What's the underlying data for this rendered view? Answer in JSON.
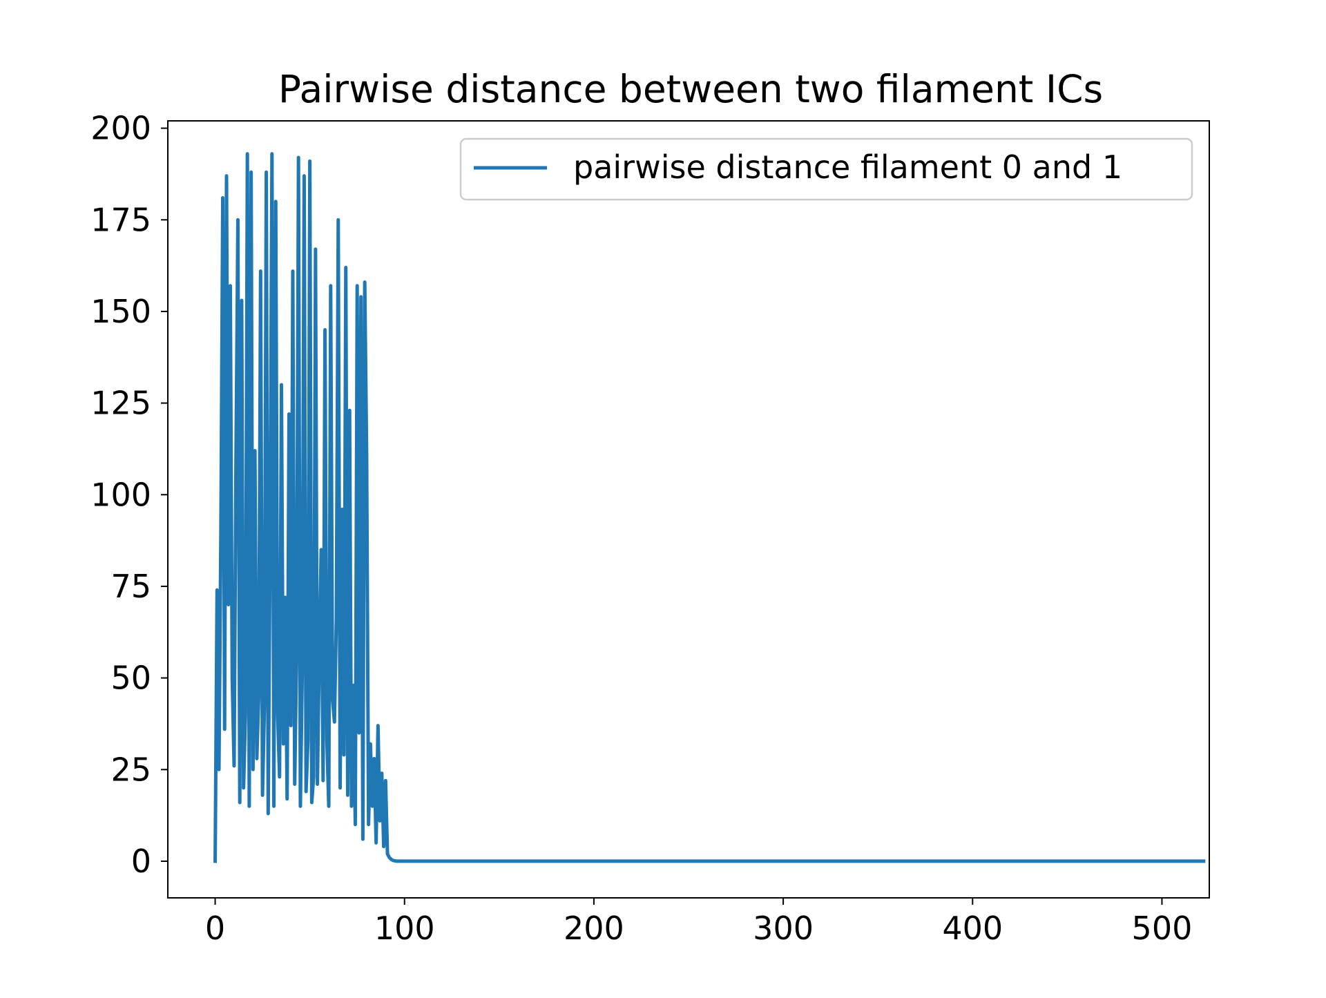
{
  "colors": {
    "series": "#1f77b4",
    "axes": "#000000",
    "background": "#ffffff",
    "legend_border": "#cccccc"
  },
  "chart_data": {
    "type": "line",
    "title": "Pairwise distance between two filament ICs",
    "xlabel": "",
    "ylabel": "",
    "xlim": [
      -25,
      525
    ],
    "ylim": [
      -10,
      202
    ],
    "x_ticks": [
      0,
      100,
      200,
      300,
      400,
      500
    ],
    "x_tick_labels": [
      "0",
      "100",
      "200",
      "300",
      "400",
      "500"
    ],
    "y_ticks": [
      0,
      25,
      50,
      75,
      100,
      125,
      150,
      175,
      200
    ],
    "y_tick_labels": [
      "0",
      "25",
      "50",
      "75",
      "100",
      "125",
      "150",
      "175",
      "200"
    ],
    "grid": false,
    "legend_position": "upper-right",
    "series": [
      {
        "name": "pairwise distance filament 0 and 1",
        "x_start": 0,
        "x_step": 1,
        "values": [
          0,
          74,
          25,
          88,
          181,
          36,
          187,
          70,
          157,
          50,
          26,
          110,
          175,
          16,
          153,
          20,
          40,
          193,
          15,
          188,
          25,
          112,
          28,
          45,
          161,
          18,
          42,
          188,
          13,
          87,
          193,
          15,
          180,
          40,
          23,
          130,
          32,
          72,
          17,
          122,
          37,
          161,
          21,
          56,
          192,
          15,
          52,
          187,
          19,
          33,
          191,
          16,
          23,
          167,
          21,
          58,
          85,
          22,
          145,
          33,
          15,
          157,
          44,
          38,
          66,
          175,
          20,
          96,
          29,
          162,
          18,
          123,
          15,
          48,
          10,
          157,
          35,
          154,
          6,
          158,
          111,
          10,
          32,
          15,
          28,
          5,
          37,
          11,
          24,
          4,
          22,
          2,
          1,
          0.5,
          0.2,
          0.1,
          0,
          0,
          0,
          0,
          0,
          0,
          0,
          0,
          0,
          0,
          0,
          0,
          0,
          0,
          0,
          0,
          0,
          0,
          0,
          0,
          0,
          0,
          0,
          0,
          0,
          0,
          0,
          0,
          0,
          0,
          0,
          0,
          0,
          0,
          0,
          0,
          0,
          0,
          0,
          0,
          0,
          0,
          0,
          0,
          0,
          0,
          0,
          0,
          0,
          0,
          0,
          0,
          0,
          0,
          0,
          0,
          0,
          0,
          0,
          0,
          0,
          0,
          0,
          0,
          0,
          0,
          0,
          0,
          0,
          0,
          0,
          0,
          0,
          0,
          0,
          0,
          0,
          0,
          0,
          0,
          0,
          0,
          0,
          0,
          0,
          0,
          0,
          0,
          0,
          0,
          0,
          0,
          0,
          0,
          0,
          0,
          0,
          0,
          0,
          0,
          0,
          0,
          0,
          0,
          0,
          0,
          0,
          0,
          0,
          0,
          0,
          0,
          0,
          0,
          0,
          0,
          0,
          0,
          0,
          0,
          0,
          0,
          0,
          0,
          0,
          0,
          0,
          0,
          0,
          0,
          0,
          0,
          0,
          0,
          0,
          0,
          0,
          0,
          0,
          0,
          0,
          0,
          0,
          0,
          0,
          0,
          0,
          0,
          0,
          0,
          0,
          0,
          0,
          0,
          0,
          0,
          0,
          0,
          0,
          0,
          0,
          0,
          0,
          0,
          0,
          0,
          0,
          0,
          0,
          0,
          0,
          0,
          0,
          0,
          0,
          0,
          0,
          0,
          0,
          0,
          0,
          0,
          0,
          0,
          0,
          0,
          0,
          0,
          0,
          0,
          0,
          0,
          0,
          0,
          0,
          0,
          0,
          0,
          0,
          0,
          0,
          0,
          0,
          0,
          0,
          0,
          0,
          0,
          0,
          0,
          0,
          0,
          0,
          0,
          0,
          0,
          0,
          0,
          0,
          0,
          0,
          0,
          0,
          0,
          0,
          0,
          0,
          0,
          0,
          0,
          0,
          0,
          0,
          0,
          0,
          0,
          0,
          0,
          0,
          0,
          0,
          0,
          0,
          0,
          0,
          0,
          0,
          0,
          0,
          0,
          0,
          0,
          0,
          0,
          0,
          0,
          0,
          0,
          0,
          0,
          0,
          0,
          0,
          0,
          0,
          0,
          0,
          0,
          0,
          0,
          0,
          0,
          0,
          0,
          0,
          0,
          0,
          0,
          0,
          0,
          0,
          0,
          0,
          0,
          0,
          0,
          0,
          0,
          0,
          0,
          0,
          0,
          0,
          0,
          0,
          0,
          0,
          0,
          0,
          0,
          0,
          0,
          0,
          0,
          0,
          0,
          0,
          0,
          0,
          0,
          0,
          0,
          0,
          0,
          0,
          0,
          0,
          0,
          0,
          0,
          0,
          0,
          0,
          0,
          0,
          0,
          0,
          0,
          0,
          0,
          0,
          0,
          0,
          0,
          0,
          0,
          0,
          0,
          0,
          0,
          0,
          0,
          0,
          0,
          0,
          0,
          0,
          0,
          0,
          0,
          0,
          0,
          0,
          0,
          0,
          0,
          0,
          0,
          0,
          0,
          0,
          0,
          0,
          0,
          0,
          0,
          0,
          0,
          0,
          0,
          0,
          0,
          0,
          0,
          0,
          0,
          0,
          0,
          0,
          0,
          0,
          0,
          0,
          0,
          0,
          0,
          0,
          0,
          0,
          0,
          0,
          0,
          0,
          0,
          0,
          0,
          0,
          0,
          0,
          0,
          0,
          0,
          0,
          0,
          0,
          0,
          0,
          0,
          0,
          0,
          0,
          0,
          0,
          0,
          0,
          0,
          0,
          0,
          0,
          0,
          0,
          0,
          0,
          0,
          0,
          0,
          0
        ]
      }
    ]
  }
}
